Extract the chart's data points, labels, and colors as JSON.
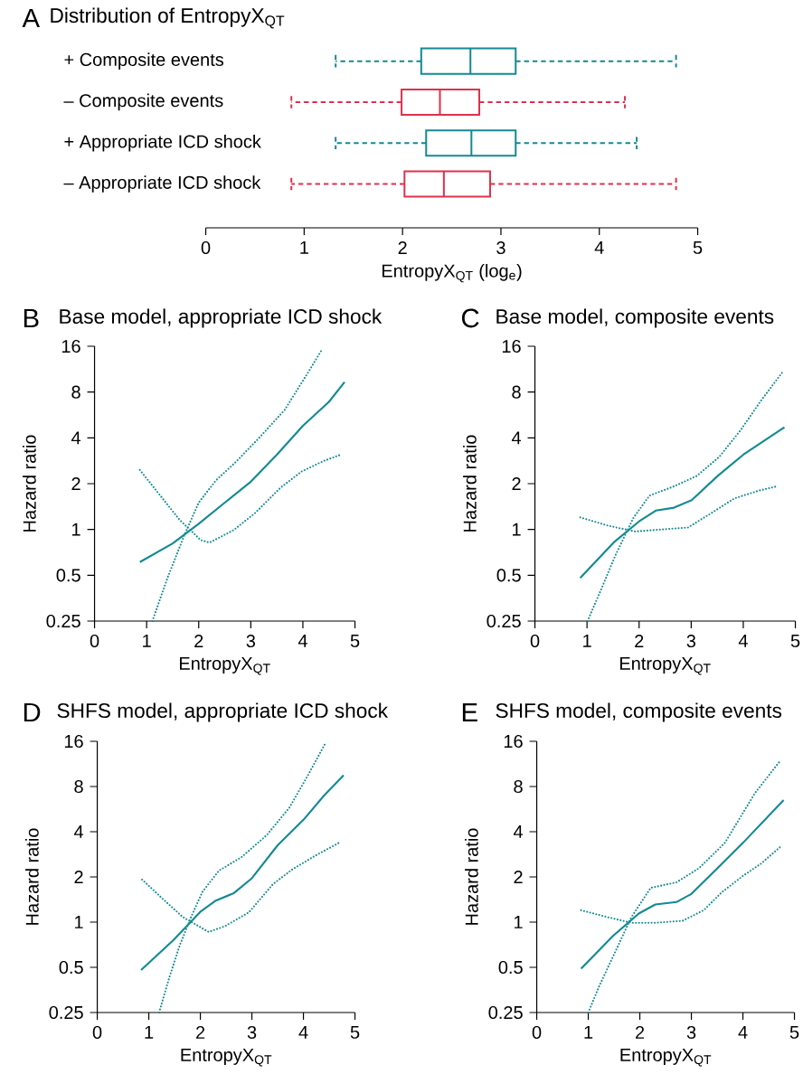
{
  "chart_data": [
    {
      "type": "box",
      "orientation": "horizontal",
      "title": "Distribution of EntropyX$_{QT}$",
      "annotations": [
        "A"
      ],
      "xlabel": "EntropyX$_{QT}$ (log$_{e}$)",
      "categories": [
        "+ Composite events",
        "– Composite events",
        "+ Appropriate ICD shock",
        "– Appropriate ICD shock"
      ],
      "colors": [
        "#138a92",
        "#e0304d",
        "#138a92",
        "#e0304d"
      ],
      "boxes": [
        {
          "low": 1.32,
          "q1": 2.19,
          "median": 2.69,
          "q3": 3.15,
          "high": 4.78
        },
        {
          "low": 0.87,
          "q1": 1.99,
          "median": 2.38,
          "q3": 2.78,
          "high": 4.26
        },
        {
          "low": 1.32,
          "q1": 2.24,
          "median": 2.7,
          "q3": 3.15,
          "high": 4.38
        },
        {
          "low": 0.87,
          "q1": 2.02,
          "median": 2.42,
          "q3": 2.89,
          "high": 4.78
        }
      ],
      "xlim": [
        0,
        5
      ],
      "xticks": [
        0,
        1,
        2,
        3,
        4,
        5
      ],
      "line_style": "dashed"
    },
    {
      "type": "line",
      "title": "Base model, appropriate ICD shock",
      "annotations": [
        "B"
      ],
      "xlabel": "EntropyX$_{QT}$",
      "ylabel": "Hazard ratio",
      "log": "y",
      "xlim": [
        0,
        5
      ],
      "ylim": [
        0.25,
        16
      ],
      "xticks": [
        0,
        1,
        2,
        3,
        4,
        5
      ],
      "yticks": [
        0.25,
        0.5,
        1,
        2,
        4,
        8,
        16
      ],
      "series": [
        {
          "color": "#138a92",
          "line_style": "solid",
          "x": [
            0.87,
            1.5,
            2,
            2.5,
            3,
            3.5,
            4,
            4.5,
            4.8
          ],
          "values": [
            0.61,
            0.81,
            1.09,
            1.5,
            2.06,
            3.1,
            4.8,
            6.9,
            9.3
          ]
        },
        {
          "color": "#138a92",
          "line_style": "dotted",
          "x": [
            1.11,
            1.4,
            1.72,
            2.0,
            2.33,
            2.71,
            3.19,
            3.65,
            4.11,
            4.37
          ],
          "values": [
            0.25,
            0.48,
            0.91,
            1.5,
            2.1,
            2.77,
            4.1,
            6.1,
            10.9,
            15.3
          ]
        },
        {
          "color": "#138a92",
          "line_style": "dotted",
          "x": [
            0.87,
            1.28,
            1.63,
            2.04,
            2.21,
            2.67,
            3.08,
            3.57,
            3.98,
            4.41,
            4.75
          ],
          "values": [
            2.46,
            1.64,
            1.16,
            0.85,
            0.82,
            0.99,
            1.28,
            1.88,
            2.41,
            2.83,
            3.12
          ]
        }
      ]
    },
    {
      "type": "line",
      "title": "Base model, composite events",
      "annotations": [
        "C"
      ],
      "xlabel": "EntropyX$_{QT}$",
      "ylabel": "Hazard ratio",
      "log": "y",
      "xlim": [
        0,
        5
      ],
      "ylim": [
        0.25,
        16
      ],
      "xticks": [
        0,
        1,
        2,
        3,
        4,
        5
      ],
      "yticks": [
        0.25,
        0.5,
        1,
        2,
        4,
        8,
        16
      ],
      "series": [
        {
          "color": "#138a92",
          "line_style": "solid",
          "x": [
            0.87,
            1.51,
            2.0,
            2.32,
            2.67,
            3.01,
            3.51,
            4.0,
            4.79
          ],
          "values": [
            0.48,
            0.82,
            1.13,
            1.33,
            1.39,
            1.56,
            2.25,
            3.1,
            4.7
          ]
        },
        {
          "color": "#138a92",
          "line_style": "dotted",
          "x": [
            1.01,
            1.28,
            1.54,
            1.89,
            2.2,
            2.67,
            3.11,
            3.54,
            3.95,
            4.35,
            4.77
          ],
          "values": [
            0.25,
            0.41,
            0.67,
            1.19,
            1.67,
            1.92,
            2.25,
            3.0,
            4.5,
            7.1,
            11.0
          ]
        },
        {
          "color": "#138a92",
          "line_style": "dotted",
          "x": [
            0.87,
            1.4,
            1.92,
            2.27,
            2.94,
            3.37,
            3.83,
            4.3,
            4.64
          ],
          "values": [
            1.2,
            1.06,
            0.97,
            0.99,
            1.03,
            1.27,
            1.6,
            1.8,
            1.92
          ]
        }
      ]
    },
    {
      "type": "line",
      "title": "SHFS model, appropriate ICD shock",
      "annotations": [
        "D"
      ],
      "xlabel": "EntropyX$_{QT}$",
      "ylabel": "Hazard ratio",
      "log": "y",
      "xlim": [
        0,
        5
      ],
      "ylim": [
        0.25,
        16
      ],
      "xticks": [
        0,
        1,
        2,
        3,
        4,
        5
      ],
      "yticks": [
        0.25,
        0.5,
        1,
        2,
        4,
        8,
        16
      ],
      "series": [
        {
          "color": "#138a92",
          "line_style": "solid",
          "x": [
            0.85,
            1.48,
            2.01,
            2.3,
            2.65,
            3.0,
            3.5,
            4.0,
            4.4,
            4.78
          ],
          "values": [
            0.48,
            0.76,
            1.18,
            1.39,
            1.56,
            1.96,
            3.25,
            4.8,
            6.96,
            9.5
          ]
        },
        {
          "color": "#138a92",
          "line_style": "dotted",
          "x": [
            1.2,
            1.4,
            1.6,
            1.83,
            2.04,
            2.36,
            2.8,
            3.29,
            3.73,
            4.08,
            4.42
          ],
          "values": [
            0.25,
            0.43,
            0.7,
            1.1,
            1.59,
            2.2,
            2.71,
            3.8,
            5.8,
            9.4,
            15.4
          ]
        },
        {
          "color": "#138a92",
          "line_style": "dotted",
          "x": [
            0.87,
            1.25,
            1.66,
            2.16,
            2.48,
            2.94,
            3.41,
            3.79,
            4.23,
            4.68
          ],
          "values": [
            1.92,
            1.45,
            1.08,
            0.86,
            0.94,
            1.16,
            1.79,
            2.25,
            2.77,
            3.36
          ]
        }
      ]
    },
    {
      "type": "line",
      "title": "SHFS model, composite events",
      "annotations": [
        "E"
      ],
      "xlabel": "EntropyX$_{QT}$",
      "ylabel": "Hazard ratio",
      "log": "y",
      "xlim": [
        0,
        5
      ],
      "ylim": [
        0.25,
        16
      ],
      "xticks": [
        0,
        1,
        2,
        3,
        4,
        5
      ],
      "yticks": [
        0.25,
        0.5,
        1,
        2,
        4,
        8,
        16
      ],
      "series": [
        {
          "color": "#138a92",
          "line_style": "solid",
          "x": [
            0.86,
            1.48,
            1.98,
            2.3,
            2.71,
            3.0,
            3.53,
            4.0,
            4.79
          ],
          "values": [
            0.49,
            0.81,
            1.14,
            1.31,
            1.36,
            1.54,
            2.33,
            3.37,
            6.5
          ]
        },
        {
          "color": "#138a92",
          "line_style": "dotted",
          "x": [
            1.0,
            1.22,
            1.51,
            1.83,
            2.21,
            2.71,
            3.15,
            3.65,
            4.23,
            4.71
          ],
          "values": [
            0.25,
            0.38,
            0.62,
            1.07,
            1.69,
            1.84,
            2.29,
            3.37,
            7.2,
            11.7
          ]
        },
        {
          "color": "#138a92",
          "line_style": "dotted",
          "x": [
            0.86,
            1.37,
            1.83,
            2.3,
            2.83,
            3.24,
            3.59,
            4.0,
            4.35,
            4.75
          ],
          "values": [
            1.2,
            1.08,
            0.99,
            0.99,
            1.02,
            1.2,
            1.58,
            2.03,
            2.45,
            3.22
          ]
        }
      ]
    }
  ]
}
